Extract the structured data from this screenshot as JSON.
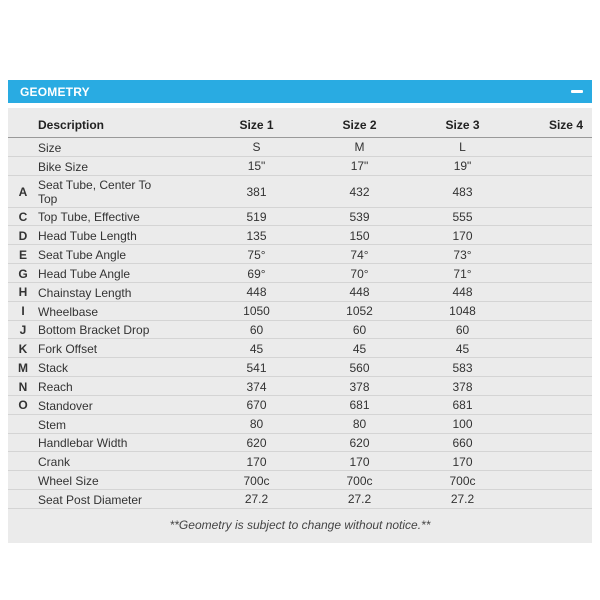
{
  "panel": {
    "accent_color": "#29abe2",
    "header": {
      "title": "GEOMETRY",
      "collapse_icon": "minus"
    },
    "table": {
      "columns": {
        "letter": "",
        "description": "Description",
        "size1": "Size 1",
        "size2": "Size 2",
        "size3": "Size 3",
        "size4": "Size 4"
      },
      "rows": [
        {
          "letter": "",
          "description": "Size",
          "size1": "S",
          "size2": "M",
          "size3": "L",
          "size4": ""
        },
        {
          "letter": "",
          "description": "Bike Size",
          "size1": "15\"",
          "size2": "17\"",
          "size3": "19\"",
          "size4": ""
        },
        {
          "letter": "A",
          "description": "Seat Tube, Center To Top",
          "size1": "381",
          "size2": "432",
          "size3": "483",
          "size4": ""
        },
        {
          "letter": "C",
          "description": "Top Tube, Effective",
          "size1": "519",
          "size2": "539",
          "size3": "555",
          "size4": ""
        },
        {
          "letter": "D",
          "description": "Head Tube Length",
          "size1": "135",
          "size2": "150",
          "size3": "170",
          "size4": ""
        },
        {
          "letter": "E",
          "description": "Seat Tube Angle",
          "size1": "75°",
          "size2": "74°",
          "size3": "73°",
          "size4": ""
        },
        {
          "letter": "G",
          "description": "Head Tube Angle",
          "size1": "69°",
          "size2": "70°",
          "size3": "71°",
          "size4": ""
        },
        {
          "letter": "H",
          "description": "Chainstay Length",
          "size1": "448",
          "size2": "448",
          "size3": "448",
          "size4": ""
        },
        {
          "letter": "I",
          "description": "Wheelbase",
          "size1": "1050",
          "size2": "1052",
          "size3": "1048",
          "size4": ""
        },
        {
          "letter": "J",
          "description": "Bottom Bracket Drop",
          "size1": "60",
          "size2": "60",
          "size3": "60",
          "size4": ""
        },
        {
          "letter": "K",
          "description": "Fork Offset",
          "size1": "45",
          "size2": "45",
          "size3": "45",
          "size4": ""
        },
        {
          "letter": "M",
          "description": "Stack",
          "size1": "541",
          "size2": "560",
          "size3": "583",
          "size4": ""
        },
        {
          "letter": "N",
          "description": "Reach",
          "size1": "374",
          "size2": "378",
          "size3": "378",
          "size4": ""
        },
        {
          "letter": "O",
          "description": "Standover",
          "size1": "670",
          "size2": "681",
          "size3": "681",
          "size4": ""
        },
        {
          "letter": "",
          "description": "Stem",
          "size1": "80",
          "size2": "80",
          "size3": "100",
          "size4": ""
        },
        {
          "letter": "",
          "description": "Handlebar Width",
          "size1": "620",
          "size2": "620",
          "size3": "660",
          "size4": ""
        },
        {
          "letter": "",
          "description": "Crank",
          "size1": "170",
          "size2": "170",
          "size3": "170",
          "size4": ""
        },
        {
          "letter": "",
          "description": "Wheel Size",
          "size1": "700c",
          "size2": "700c",
          "size3": "700c",
          "size4": ""
        },
        {
          "letter": "",
          "description": "Seat Post Diameter",
          "size1": "27.2",
          "size2": "27.2",
          "size3": "27.2",
          "size4": ""
        }
      ],
      "footnote": "**Geometry is subject to change without notice.**"
    }
  }
}
